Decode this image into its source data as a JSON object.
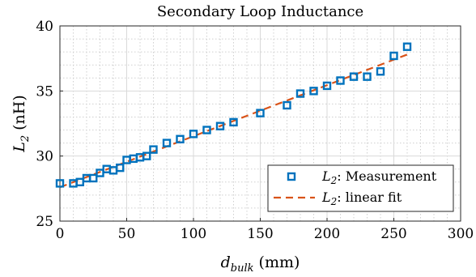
{
  "chart_data": {
    "type": "scatter",
    "title": "Secondary Loop Inductance",
    "xlabel": "d_bulk (mm)",
    "xlabel_main": "d",
    "xlabel_sub": "bulk",
    "xlabel_unit": " (mm)",
    "ylabel": "L_2 (nH)",
    "ylabel_main": "L",
    "ylabel_sub": "2",
    "ylabel_unit": " (nH)",
    "xlim": [
      0,
      300
    ],
    "ylim": [
      25,
      40
    ],
    "xticks": [
      0,
      50,
      100,
      150,
      200,
      250,
      300
    ],
    "yticks": [
      25,
      30,
      35,
      40
    ],
    "grid": true,
    "minor_grid": true,
    "legend_position": "bottom-right",
    "colors": {
      "measurement": "#0072BD",
      "fit": "#D95319"
    },
    "series": [
      {
        "name": "L_2: Measurement",
        "legend_main": "L",
        "legend_sub": "2",
        "legend_rest": ": Measurement",
        "marker": "square",
        "x": [
          0,
          10,
          15,
          20,
          25,
          30,
          35,
          40,
          45,
          50,
          55,
          60,
          65,
          70,
          80,
          90,
          100,
          110,
          120,
          130,
          150,
          170,
          180,
          190,
          200,
          210,
          220,
          230,
          240,
          250,
          260
        ],
        "y": [
          27.9,
          27.9,
          28.0,
          28.3,
          28.3,
          28.7,
          29.0,
          28.9,
          29.1,
          29.7,
          29.8,
          29.9,
          30.0,
          30.5,
          31.0,
          31.3,
          31.7,
          32.0,
          32.3,
          32.6,
          33.3,
          33.9,
          34.8,
          35.0,
          35.4,
          35.8,
          36.1,
          36.1,
          36.5,
          37.7,
          38.4
        ]
      },
      {
        "name": "L_2: linear fit",
        "legend_main": "L",
        "legend_sub": "2",
        "legend_rest": ": linear fit",
        "line_style": "dashed",
        "x": [
          0,
          260
        ],
        "y": [
          27.6,
          37.8
        ]
      }
    ]
  }
}
